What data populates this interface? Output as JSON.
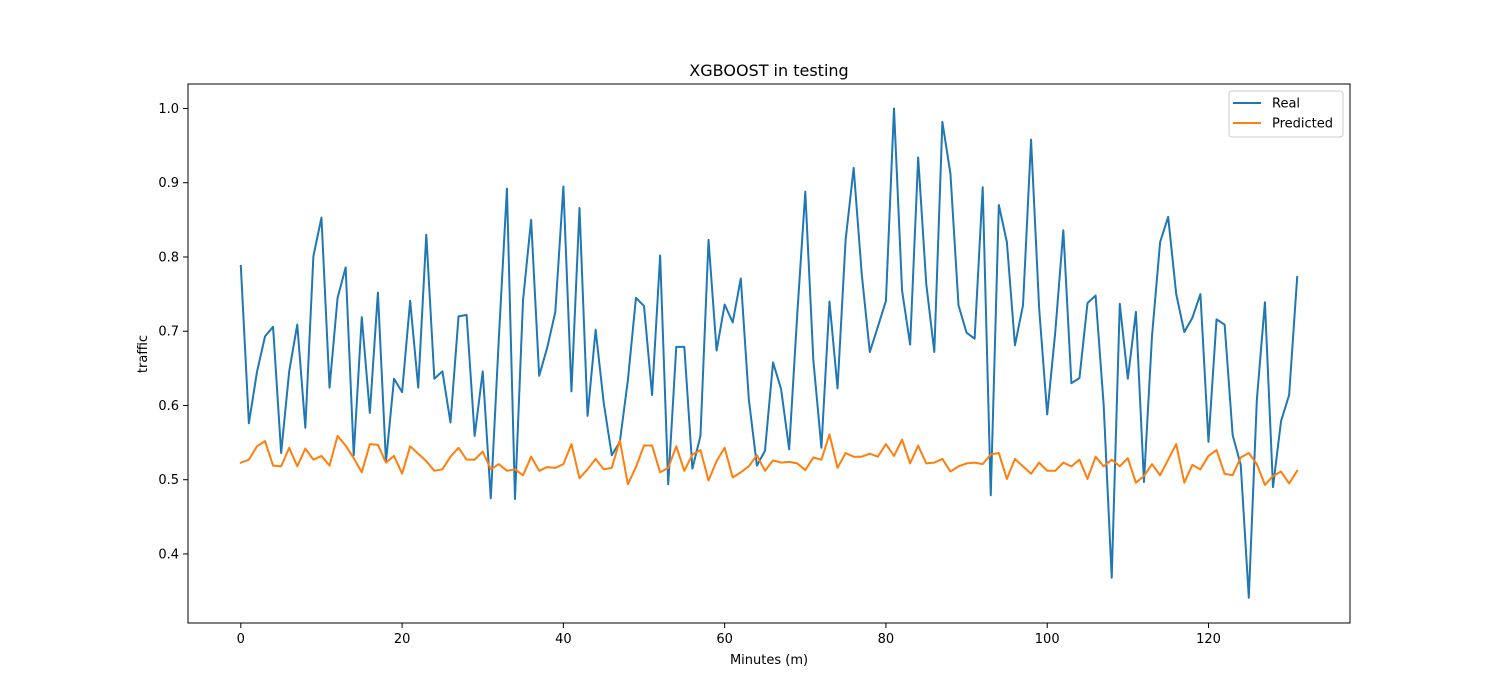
{
  "chart_data": {
    "type": "line",
    "title": "XGBOOST in testing",
    "xlabel": "Minutes (m)",
    "ylabel": "traffic",
    "xlim": [
      -6.55,
      137.55
    ],
    "ylim": [
      0.307,
      1.033
    ],
    "xticks": [
      0,
      20,
      40,
      60,
      80,
      100,
      120
    ],
    "yticks": [
      0.4,
      0.5,
      0.6,
      0.7,
      0.8,
      0.9,
      1.0
    ],
    "xtick_labels": [
      "0",
      "20",
      "40",
      "60",
      "80",
      "100",
      "120"
    ],
    "ytick_labels": [
      "0.4",
      "0.5",
      "0.6",
      "0.7",
      "0.8",
      "0.9",
      "1.0"
    ],
    "grid": false,
    "legend_position": "top-right",
    "x": [
      0,
      1,
      2,
      3,
      4,
      5,
      6,
      7,
      8,
      9,
      10,
      11,
      12,
      13,
      14,
      15,
      16,
      17,
      18,
      19,
      20,
      21,
      22,
      23,
      24,
      25,
      26,
      27,
      28,
      29,
      30,
      31,
      32,
      33,
      34,
      35,
      36,
      37,
      38,
      39,
      40,
      41,
      42,
      43,
      44,
      45,
      46,
      47,
      48,
      49,
      50,
      51,
      52,
      53,
      54,
      55,
      56,
      57,
      58,
      59,
      60,
      61,
      62,
      63,
      64,
      65,
      66,
      67,
      68,
      69,
      70,
      71,
      72,
      73,
      74,
      75,
      76,
      77,
      78,
      79,
      80,
      81,
      82,
      83,
      84,
      85,
      86,
      87,
      88,
      89,
      90,
      91,
      92,
      93,
      94,
      95,
      96,
      97,
      98,
      99,
      100,
      101,
      102,
      103,
      104,
      105,
      106,
      107,
      108,
      109,
      110,
      111,
      112,
      113,
      114,
      115,
      116,
      117,
      118,
      119,
      120,
      121,
      122,
      123,
      124,
      125,
      126,
      127,
      128,
      129,
      130,
      131
    ],
    "series": [
      {
        "name": "Real",
        "color": "#1f77b4",
        "values": [
          0.788,
          0.576,
          0.645,
          0.693,
          0.706,
          0.536,
          0.646,
          0.709,
          0.57,
          0.801,
          0.853,
          0.624,
          0.745,
          0.786,
          0.533,
          0.719,
          0.59,
          0.752,
          0.524,
          0.636,
          0.618,
          0.741,
          0.624,
          0.83,
          0.636,
          0.646,
          0.577,
          0.72,
          0.722,
          0.559,
          0.646,
          0.475,
          0.691,
          0.892,
          0.474,
          0.742,
          0.85,
          0.64,
          0.678,
          0.726,
          0.895,
          0.619,
          0.866,
          0.586,
          0.702,
          0.604,
          0.533,
          0.551,
          0.634,
          0.745,
          0.734,
          0.614,
          0.802,
          0.494,
          0.679,
          0.679,
          0.515,
          0.559,
          0.823,
          0.674,
          0.736,
          0.712,
          0.771,
          0.608,
          0.519,
          0.539,
          0.658,
          0.622,
          0.541,
          0.722,
          0.888,
          0.661,
          0.543,
          0.74,
          0.623,
          0.823,
          0.92,
          0.777,
          0.672,
          0.706,
          0.741,
          1.0,
          0.755,
          0.682,
          0.934,
          0.764,
          0.672,
          0.982,
          0.912,
          0.735,
          0.698,
          0.69,
          0.894,
          0.479,
          0.87,
          0.82,
          0.681,
          0.735,
          0.958,
          0.731,
          0.588,
          0.699,
          0.836,
          0.63,
          0.637,
          0.738,
          0.748,
          0.601,
          0.368,
          0.737,
          0.636,
          0.726,
          0.497,
          0.694,
          0.82,
          0.854,
          0.75,
          0.699,
          0.718,
          0.75,
          0.551,
          0.716,
          0.709,
          0.56,
          0.52,
          0.341,
          0.608,
          0.739,
          0.49,
          0.579,
          0.614,
          0.773
        ]
      },
      {
        "name": "Predicted",
        "color": "#ff7f0e",
        "values": [
          0.523,
          0.527,
          0.545,
          0.552,
          0.519,
          0.518,
          0.543,
          0.518,
          0.542,
          0.527,
          0.532,
          0.519,
          0.559,
          0.546,
          0.529,
          0.51,
          0.548,
          0.547,
          0.523,
          0.532,
          0.508,
          0.545,
          0.535,
          0.525,
          0.512,
          0.514,
          0.531,
          0.543,
          0.527,
          0.527,
          0.538,
          0.514,
          0.521,
          0.512,
          0.514,
          0.506,
          0.531,
          0.512,
          0.517,
          0.516,
          0.521,
          0.548,
          0.502,
          0.514,
          0.528,
          0.514,
          0.516,
          0.553,
          0.494,
          0.517,
          0.546,
          0.546,
          0.51,
          0.516,
          0.545,
          0.512,
          0.534,
          0.54,
          0.499,
          0.525,
          0.543,
          0.503,
          0.51,
          0.518,
          0.533,
          0.512,
          0.526,
          0.523,
          0.524,
          0.522,
          0.513,
          0.53,
          0.527,
          0.561,
          0.516,
          0.536,
          0.531,
          0.531,
          0.535,
          0.531,
          0.548,
          0.532,
          0.554,
          0.522,
          0.546,
          0.522,
          0.523,
          0.528,
          0.511,
          0.518,
          0.522,
          0.523,
          0.521,
          0.534,
          0.536,
          0.501,
          0.528,
          0.518,
          0.508,
          0.523,
          0.512,
          0.512,
          0.523,
          0.518,
          0.527,
          0.501,
          0.531,
          0.518,
          0.527,
          0.518,
          0.529,
          0.496,
          0.505,
          0.521,
          0.506,
          0.527,
          0.548,
          0.496,
          0.52,
          0.514,
          0.532,
          0.54,
          0.508,
          0.506,
          0.53,
          0.536,
          0.521,
          0.493,
          0.505,
          0.511,
          0.495,
          0.512
        ]
      }
    ]
  }
}
